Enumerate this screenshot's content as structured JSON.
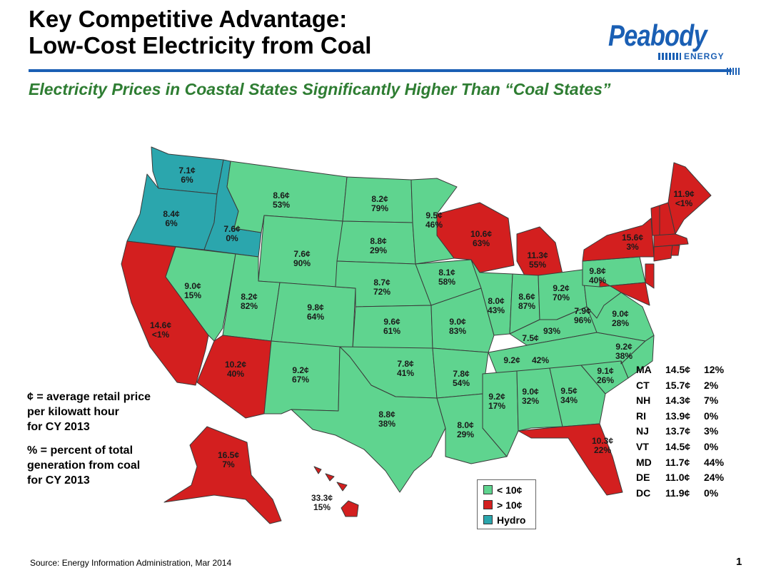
{
  "title": {
    "line1": "Key Competitive Advantage:",
    "line2": "Low-Cost Electricity from Coal"
  },
  "logo": {
    "word": "Peabody",
    "sub": "ENERGY"
  },
  "subtitle": "Electricity Prices in Coastal States Significantly Higher Than “Coal States”",
  "colors": {
    "low": "#5fd48f",
    "high": "#d31f1f",
    "hydro": "#2ba6ad",
    "brand": "#1a5fb4",
    "subtitle": "#2e7d32"
  },
  "states": [
    {
      "id": "WA",
      "price": "7.1¢",
      "coal": "6%",
      "cat": "hydro"
    },
    {
      "id": "OR",
      "price": "8.4¢",
      "coal": "6%",
      "cat": "hydro"
    },
    {
      "id": "ID",
      "price": "7.6¢",
      "coal": "0%",
      "cat": "hydro"
    },
    {
      "id": "CA",
      "price": "14.6¢",
      "coal": "<1%",
      "cat": "high"
    },
    {
      "id": "NV",
      "price": "9.0¢",
      "coal": "15%",
      "cat": "low"
    },
    {
      "id": "MT",
      "price": "8.6¢",
      "coal": "53%",
      "cat": "low"
    },
    {
      "id": "WY",
      "price": "7.6¢",
      "coal": "90%",
      "cat": "low"
    },
    {
      "id": "UT",
      "price": "8.2¢",
      "coal": "82%",
      "cat": "low"
    },
    {
      "id": "CO",
      "price": "9.8¢",
      "coal": "64%",
      "cat": "low"
    },
    {
      "id": "AZ",
      "price": "10.2¢",
      "coal": "40%",
      "cat": "high"
    },
    {
      "id": "NM",
      "price": "9.2¢",
      "coal": "67%",
      "cat": "low"
    },
    {
      "id": "ND",
      "price": "8.2¢",
      "coal": "79%",
      "cat": "low"
    },
    {
      "id": "SD",
      "price": "8.8¢",
      "coal": "29%",
      "cat": "low"
    },
    {
      "id": "NE",
      "price": "8.7¢",
      "coal": "72%",
      "cat": "low"
    },
    {
      "id": "KS",
      "price": "9.6¢",
      "coal": "61%",
      "cat": "low"
    },
    {
      "id": "OK",
      "price": "7.8¢",
      "coal": "41%",
      "cat": "low"
    },
    {
      "id": "TX",
      "price": "8.8¢",
      "coal": "38%",
      "cat": "low"
    },
    {
      "id": "MN",
      "price": "9.5¢",
      "coal": "46%",
      "cat": "low"
    },
    {
      "id": "IA",
      "price": "8.1¢",
      "coal": "58%",
      "cat": "low"
    },
    {
      "id": "MO",
      "price": "9.0¢",
      "coal": "83%",
      "cat": "low"
    },
    {
      "id": "AR",
      "price": "7.8¢",
      "coal": "54%",
      "cat": "low"
    },
    {
      "id": "LA",
      "price": "8.0¢",
      "coal": "29%",
      "cat": "low"
    },
    {
      "id": "WI",
      "price": "10.6¢",
      "coal": "63%",
      "cat": "high"
    },
    {
      "id": "MI",
      "price": "11.3¢",
      "coal": "55%",
      "cat": "high"
    },
    {
      "id": "IL",
      "price": "8.0¢",
      "coal": "43%",
      "cat": "low"
    },
    {
      "id": "IN",
      "price": "8.6¢",
      "coal": "87%",
      "cat": "low"
    },
    {
      "id": "OH",
      "price": "9.2¢",
      "coal": "70%",
      "cat": "low"
    },
    {
      "id": "KY",
      "price": "7.5¢",
      "coal": "93%",
      "cat": "low"
    },
    {
      "id": "TN",
      "price": "9.2¢",
      "coal": "42%",
      "cat": "low"
    },
    {
      "id": "MS",
      "price": "9.2¢",
      "coal": "17%",
      "cat": "low"
    },
    {
      "id": "AL",
      "price": "9.0¢",
      "coal": "32%",
      "cat": "low"
    },
    {
      "id": "GA",
      "price": "9.5¢",
      "coal": "34%",
      "cat": "low"
    },
    {
      "id": "FL",
      "price": "10.3¢",
      "coal": "22%",
      "cat": "high"
    },
    {
      "id": "SC",
      "price": "9.1¢",
      "coal": "26%",
      "cat": "low"
    },
    {
      "id": "NC",
      "price": "9.2¢",
      "coal": "38%",
      "cat": "low"
    },
    {
      "id": "VA",
      "price": "9.0¢",
      "coal": "28%",
      "cat": "low"
    },
    {
      "id": "WV",
      "price": "7.9¢",
      "coal": "96%",
      "cat": "low"
    },
    {
      "id": "PA",
      "price": "9.8¢",
      "coal": "40%",
      "cat": "low"
    },
    {
      "id": "NY",
      "price": "15.6¢",
      "coal": "3%",
      "cat": "high"
    },
    {
      "id": "ME",
      "price": "11.9¢",
      "coal": "<1%",
      "cat": "high"
    },
    {
      "id": "AK",
      "price": "16.5¢",
      "coal": "7%",
      "cat": "high"
    },
    {
      "id": "HI",
      "price": "33.3¢",
      "coal": "15%",
      "cat": "high"
    }
  ],
  "table": [
    {
      "st": "MA",
      "price": "14.5¢",
      "coal": "12%"
    },
    {
      "st": "CT",
      "price": "15.7¢",
      "coal": "2%"
    },
    {
      "st": "NH",
      "price": "14.3¢",
      "coal": "7%"
    },
    {
      "st": "RI",
      "price": "13.9¢",
      "coal": "0%"
    },
    {
      "st": "NJ",
      "price": "13.7¢",
      "coal": "3%"
    },
    {
      "st": "VT",
      "price": "14.5¢",
      "coal": "0%"
    },
    {
      "st": "MD",
      "price": "11.7¢",
      "coal": "44%"
    },
    {
      "st": "DE",
      "price": "11.0¢",
      "coal": "24%"
    },
    {
      "st": "DC",
      "price": "11.9¢",
      "coal": "0%"
    }
  ],
  "notes": {
    "price": [
      "¢ = average retail price",
      "per kilowatt hour",
      "for CY 2013"
    ],
    "coal": [
      "% = percent of total",
      "generation from coal",
      "for CY 2013"
    ]
  },
  "key": [
    {
      "label": "< 10¢",
      "cat": "low"
    },
    {
      "label": "> 10¢",
      "cat": "high"
    },
    {
      "label": "Hydro",
      "cat": "hydro"
    }
  ],
  "source": "Source: Energy Information Administration, Mar 2014",
  "page": "1"
}
